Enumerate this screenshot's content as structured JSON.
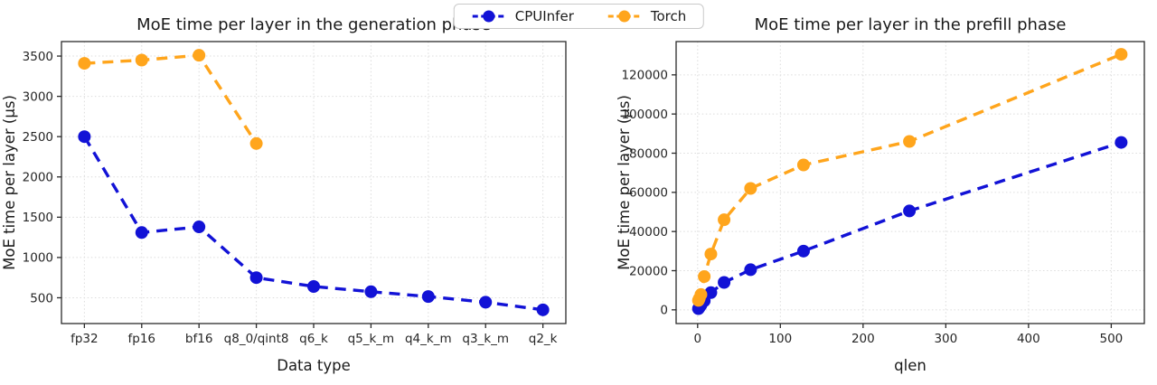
{
  "figure": {
    "background": "#ffffff"
  },
  "legend": {
    "items": [
      {
        "label": "CPUInfer",
        "color": "#1212d6"
      },
      {
        "label": "Torch",
        "color": "#ffa51c"
      }
    ]
  },
  "chart_data": [
    {
      "type": "line",
      "title": "MoE time per layer in the generation phase",
      "xlabel": "Data type",
      "ylabel": "MoE time per layer (μs)",
      "grid": true,
      "legend_position": "top-center-figure",
      "categories": [
        "fp32",
        "fp16",
        "bf16",
        "q8_0/qint8",
        "q6_k",
        "q5_k_m",
        "q4_k_m",
        "q3_k_m",
        "q2_k"
      ],
      "yticks": [
        500,
        1000,
        1500,
        2000,
        2500,
        3000,
        3500
      ],
      "ylim": [
        180,
        3680
      ],
      "series": [
        {
          "name": "CPUInfer",
          "color": "#1212d6",
          "values": [
            2500,
            1310,
            1380,
            750,
            640,
            575,
            515,
            445,
            350
          ]
        },
        {
          "name": "Torch",
          "color": "#ffa51c",
          "values": [
            3410,
            3450,
            3510,
            2415,
            null,
            null,
            null,
            null,
            null
          ]
        }
      ]
    },
    {
      "type": "line",
      "title": "MoE time per layer in the prefill phase",
      "xlabel": "qlen",
      "ylabel": "MoE time per layer (μs)",
      "grid": true,
      "x": [
        1,
        2,
        4,
        8,
        16,
        32,
        64,
        128,
        256,
        512
      ],
      "xticks": [
        0,
        100,
        200,
        300,
        400,
        500
      ],
      "xlim": [
        -26,
        540
      ],
      "yticks": [
        0,
        20000,
        40000,
        60000,
        80000,
        100000,
        120000
      ],
      "ylim": [
        -7000,
        137000
      ],
      "series": [
        {
          "name": "CPUInfer",
          "color": "#1212d6",
          "values": [
            600,
            1200,
            2400,
            4600,
            8800,
            14000,
            20500,
            30000,
            50500,
            85500
          ]
        },
        {
          "name": "Torch",
          "color": "#ffa51c",
          "values": [
            4800,
            5800,
            7800,
            17000,
            28500,
            46000,
            62000,
            74000,
            86000,
            130500
          ]
        }
      ]
    }
  ]
}
